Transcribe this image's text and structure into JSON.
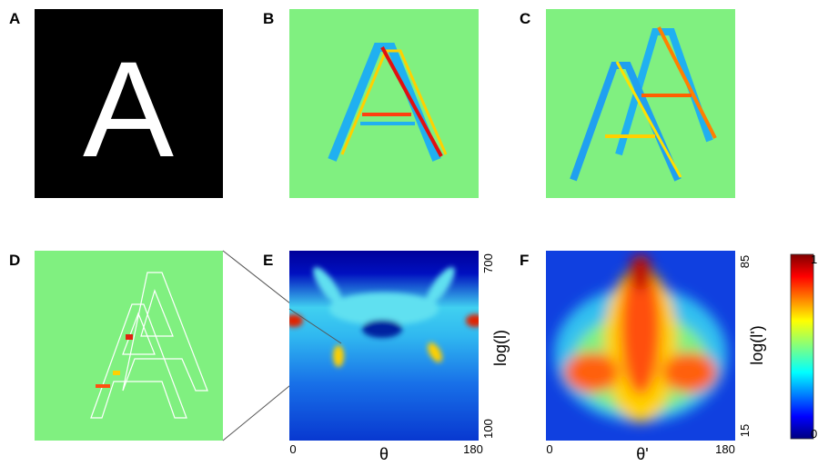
{
  "panels": [
    {
      "label": "A"
    },
    {
      "label": "B"
    },
    {
      "label": "C"
    },
    {
      "label": "D"
    },
    {
      "label": "E"
    },
    {
      "label": "F"
    }
  ],
  "image_a": {
    "glyph": "A"
  },
  "panel_e": {
    "x_ticks": [
      "0",
      "180"
    ],
    "x_label": "θ",
    "y_ticks": [
      "700",
      "100"
    ],
    "y_label": "log(l)"
  },
  "panel_f": {
    "x_ticks": [
      "0",
      "180"
    ],
    "x_label": "θ'",
    "y_ticks": [
      "85",
      "15"
    ],
    "y_label": "log(l')"
  },
  "colorbar": {
    "ticks": [
      "1",
      "0"
    ]
  }
}
